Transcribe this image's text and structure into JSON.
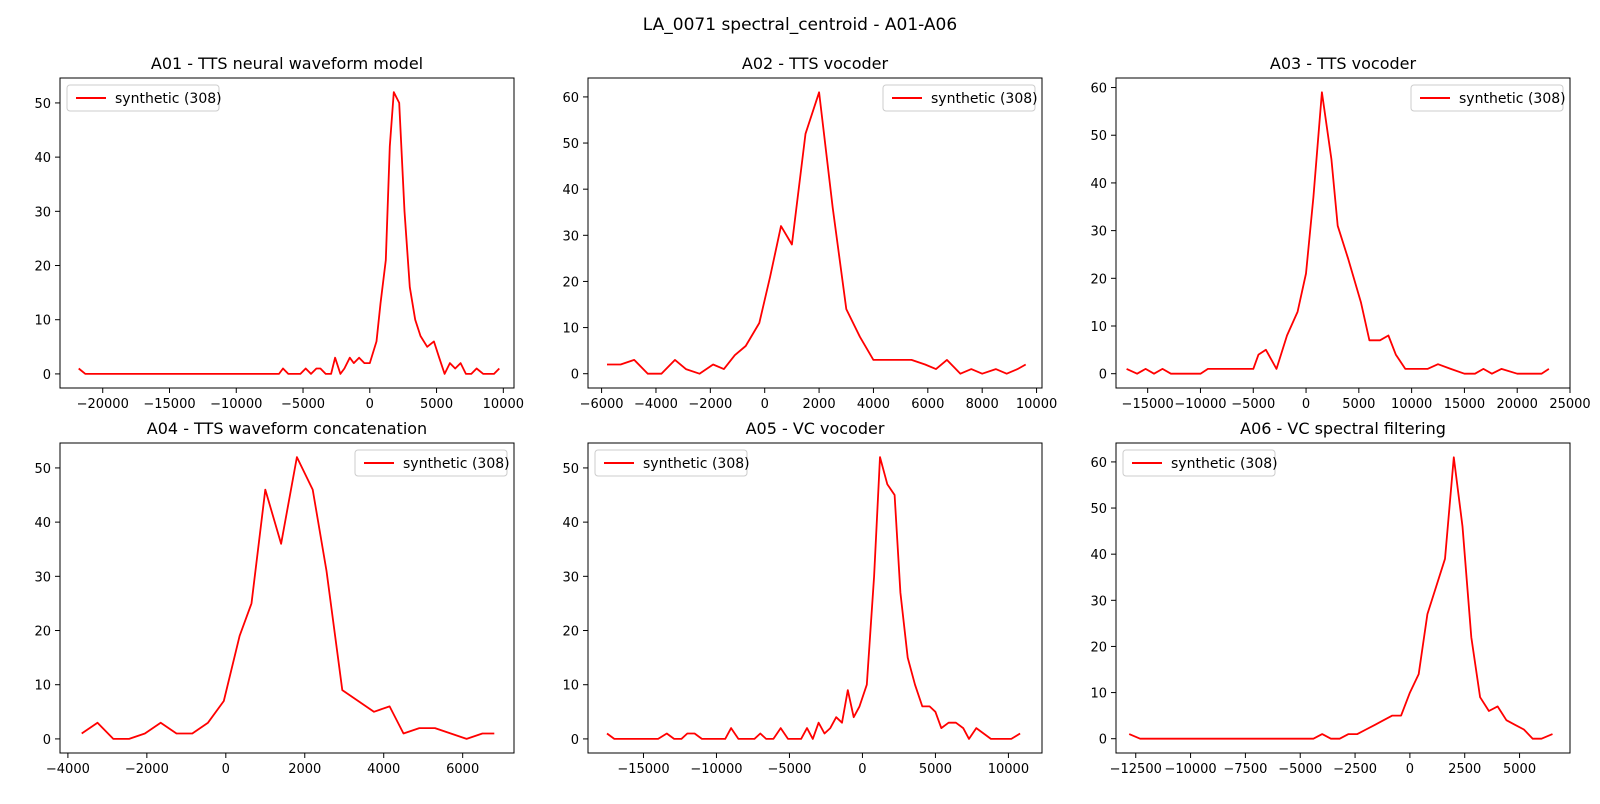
{
  "suptitle": "LA_0071 spectral_centroid - A01-A06",
  "colors": {
    "series": "#ff0000"
  },
  "chart_data": [
    {
      "type": "line",
      "title": "A01 - TTS neural waveform model",
      "legend": {
        "label": "synthetic (308)",
        "position": "upper-left"
      },
      "xlim": [
        -23200,
        10800
      ],
      "ylim": [
        -2.6,
        54.6
      ],
      "xticks": [
        -20000,
        -15000,
        -10000,
        -5000,
        0,
        5000,
        10000
      ],
      "xtick_labels": [
        "−20000",
        "−15000",
        "−10000",
        "−5000",
        "0",
        "5000",
        "10000"
      ],
      "yticks": [
        0,
        10,
        20,
        30,
        40,
        50
      ],
      "series": [
        {
          "name": "synthetic (308)",
          "x": [
            -21800,
            -21300,
            -20800,
            -20000,
            -18000,
            -15000,
            -12000,
            -9000,
            -7200,
            -6800,
            -6500,
            -6100,
            -5600,
            -5200,
            -4800,
            -4400,
            -4000,
            -3700,
            -3300,
            -2900,
            -2600,
            -2200,
            -1900,
            -1500,
            -1200,
            -800,
            -400,
            0,
            500,
            800,
            1200,
            1500,
            1800,
            2200,
            2600,
            3000,
            3400,
            3800,
            4300,
            4800,
            5200,
            5600,
            6000,
            6400,
            6800,
            7200,
            7600,
            8000,
            8500,
            8900,
            9300,
            9700
          ],
          "y": [
            1,
            0,
            0,
            0,
            0,
            0,
            0,
            0,
            0,
            0,
            1,
            0,
            0,
            0,
            1,
            0,
            1,
            1,
            0,
            0,
            3,
            0,
            1,
            3,
            2,
            3,
            2,
            2,
            6,
            13,
            21,
            42,
            52,
            50,
            30,
            16,
            10,
            7,
            5,
            6,
            3,
            0,
            2,
            1,
            2,
            0,
            0,
            1,
            0,
            0,
            0,
            1
          ]
        }
      ]
    },
    {
      "type": "line",
      "title": "A02 - TTS vocoder",
      "legend": {
        "label": "synthetic (308)",
        "position": "upper-right"
      },
      "xlim": [
        -6500,
        10200
      ],
      "ylim": [
        -3.1,
        64.1
      ],
      "xticks": [
        -6000,
        -4000,
        -2000,
        0,
        2000,
        4000,
        6000,
        8000,
        10000
      ],
      "xtick_labels": [
        "−6000",
        "−4000",
        "−2000",
        "0",
        "2000",
        "4000",
        "6000",
        "8000",
        "10000"
      ],
      "yticks": [
        0,
        10,
        20,
        30,
        40,
        50,
        60
      ],
      "series": [
        {
          "name": "synthetic (308)",
          "x": [
            -5800,
            -5300,
            -4800,
            -4300,
            -3800,
            -3300,
            -2900,
            -2400,
            -1900,
            -1500,
            -1100,
            -700,
            -200,
            200,
            600,
            1000,
            1500,
            2000,
            2500,
            3000,
            3500,
            4000,
            4500,
            5000,
            5400,
            5900,
            6300,
            6700,
            7200,
            7600,
            8000,
            8500,
            8900,
            9300,
            9600
          ],
          "y": [
            2,
            2,
            3,
            0,
            0,
            3,
            1,
            0,
            2,
            1,
            4,
            6,
            11,
            21,
            32,
            28,
            52,
            61,
            36,
            14,
            8,
            3,
            3,
            3,
            3,
            2,
            1,
            3,
            0,
            1,
            0,
            1,
            0,
            1,
            2
          ]
        }
      ]
    },
    {
      "type": "line",
      "title": "A03 - TTS vocoder",
      "legend": {
        "label": "synthetic (308)",
        "position": "upper-right"
      },
      "xlim": [
        -18000,
        25000
      ],
      "ylim": [
        -3,
        62
      ],
      "xticks": [
        -15000,
        -10000,
        -5000,
        0,
        5000,
        10000,
        15000,
        20000,
        25000
      ],
      "xtick_labels": [
        "−15000",
        "−10000",
        "−5000",
        "0",
        "5000",
        "10000",
        "15000",
        "20000",
        "25000"
      ],
      "yticks": [
        0,
        10,
        20,
        30,
        40,
        50,
        60
      ],
      "series": [
        {
          "name": "synthetic (308)",
          "x": [
            -17000,
            -16000,
            -15200,
            -14400,
            -13600,
            -12800,
            -11500,
            -10000,
            -9300,
            -8000,
            -6500,
            -5000,
            -4500,
            -3800,
            -2800,
            -1800,
            -800,
            0,
            700,
            1500,
            2400,
            3000,
            4000,
            5200,
            6000,
            7000,
            7800,
            8500,
            9400,
            10500,
            11500,
            12500,
            13700,
            15000,
            16000,
            16800,
            17600,
            18500,
            20000,
            21500,
            22300,
            23000
          ],
          "y": [
            1,
            0,
            1,
            0,
            1,
            0,
            0,
            0,
            1,
            1,
            1,
            1,
            4,
            5,
            1,
            8,
            13,
            21,
            37,
            59,
            45,
            31,
            24,
            15,
            7,
            7,
            8,
            4,
            1,
            1,
            1,
            2,
            1,
            0,
            0,
            1,
            0,
            1,
            0,
            0,
            0,
            1
          ]
        }
      ]
    },
    {
      "type": "line",
      "title": "A04 - TTS waveform concatenation",
      "legend": {
        "label": "synthetic (308)",
        "position": "upper-right"
      },
      "xlim": [
        -4200,
        7300
      ],
      "ylim": [
        -2.6,
        54.6
      ],
      "xticks": [
        -4000,
        -2000,
        0,
        2000,
        4000,
        6000
      ],
      "xtick_labels": [
        "−4000",
        "−2000",
        "0",
        "2000",
        "4000",
        "6000"
      ],
      "yticks": [
        0,
        10,
        20,
        30,
        40,
        50
      ],
      "series": [
        {
          "name": "synthetic (308)",
          "x": [
            -3650,
            -3250,
            -2850,
            -2450,
            -2050,
            -1650,
            -1250,
            -850,
            -450,
            -50,
            350,
            650,
            1000,
            1400,
            1800,
            2200,
            2550,
            2950,
            3750,
            4150,
            4500,
            4900,
            5300,
            6100,
            6500,
            6800
          ],
          "y": [
            1,
            3,
            0,
            0,
            1,
            3,
            1,
            1,
            3,
            7,
            19,
            25,
            46,
            36,
            52,
            46,
            31,
            9,
            5,
            6,
            1,
            2,
            2,
            0,
            1,
            1
          ]
        }
      ]
    },
    {
      "type": "line",
      "title": "A05 - VC vocoder",
      "legend": {
        "label": "synthetic (308)",
        "position": "upper-left"
      },
      "xlim": [
        -18800,
        12300
      ],
      "ylim": [
        -2.6,
        54.6
      ],
      "xticks": [
        -15000,
        -10000,
        -5000,
        0,
        5000,
        10000
      ],
      "xtick_labels": [
        "−15000",
        "−10000",
        "−5000",
        "0",
        "5000",
        "10000"
      ],
      "yticks": [
        0,
        10,
        20,
        30,
        40,
        50
      ],
      "series": [
        {
          "name": "synthetic (308)",
          "x": [
            -17500,
            -17000,
            -16000,
            -15000,
            -14000,
            -13400,
            -12900,
            -12400,
            -12000,
            -11500,
            -11000,
            -10000,
            -9400,
            -9000,
            -8500,
            -7800,
            -7400,
            -7000,
            -6600,
            -6100,
            -5600,
            -5100,
            -4600,
            -4200,
            -3800,
            -3400,
            -3000,
            -2600,
            -2200,
            -1800,
            -1400,
            -1000,
            -600,
            -200,
            300,
            800,
            1200,
            1700,
            2200,
            2600,
            3100,
            3600,
            4100,
            4600,
            5000,
            5400,
            5900,
            6400,
            6900,
            7300,
            7800,
            8300,
            8800,
            9400,
            10200,
            10800
          ],
          "y": [
            1,
            0,
            0,
            0,
            0,
            1,
            0,
            0,
            1,
            1,
            0,
            0,
            0,
            2,
            0,
            0,
            0,
            1,
            0,
            0,
            2,
            0,
            0,
            0,
            2,
            0,
            3,
            1,
            2,
            4,
            3,
            9,
            4,
            6,
            10,
            30,
            52,
            47,
            45,
            27,
            15,
            10,
            6,
            6,
            5,
            2,
            3,
            3,
            2,
            0,
            2,
            1,
            0,
            0,
            0,
            1
          ]
        }
      ]
    },
    {
      "type": "line",
      "title": "A06 - VC spectral filtering",
      "legend": {
        "label": "synthetic (308)",
        "position": "upper-left"
      },
      "xlim": [
        -13400,
        7300
      ],
      "ylim": [
        -3.1,
        64.1
      ],
      "xticks": [
        -12500,
        -10000,
        -7500,
        -5000,
        -2500,
        0,
        2500,
        5000
      ],
      "xtick_labels": [
        "−12500",
        "−10000",
        "−7500",
        "−5000",
        "−2500",
        "0",
        "2500",
        "5000"
      ],
      "yticks": [
        0,
        10,
        20,
        30,
        40,
        50,
        60
      ],
      "series": [
        {
          "name": "synthetic (308)",
          "x": [
            -12800,
            -12300,
            -11000,
            -9500,
            -8000,
            -6500,
            -5000,
            -4400,
            -4000,
            -3600,
            -3200,
            -2800,
            -2400,
            -2000,
            -1600,
            -1200,
            -800,
            -400,
            0,
            400,
            800,
            1200,
            1600,
            2000,
            2400,
            2800,
            3200,
            3600,
            4000,
            4400,
            4800,
            5200,
            5600,
            6000,
            6500
          ],
          "y": [
            1,
            0,
            0,
            0,
            0,
            0,
            0,
            0,
            1,
            0,
            0,
            1,
            1,
            2,
            3,
            4,
            5,
            5,
            10,
            14,
            27,
            33,
            39,
            61,
            46,
            22,
            9,
            6,
            7,
            4,
            3,
            2,
            0,
            0,
            1
          ]
        }
      ]
    }
  ]
}
